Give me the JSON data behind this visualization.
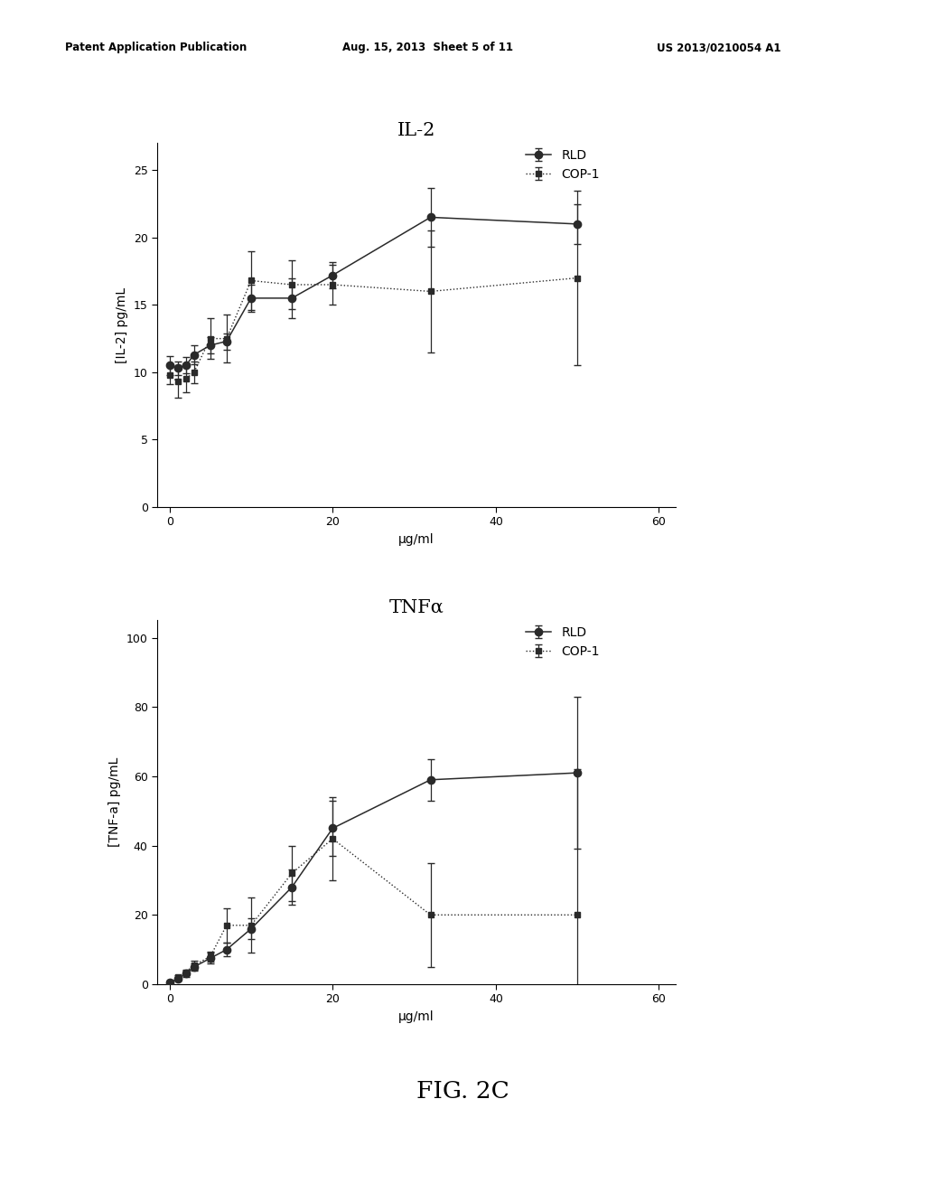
{
  "top_chart": {
    "title": "IL-2",
    "xlabel": "μg/ml",
    "ylabel": "[IL-2] pg/mL",
    "xlim": [
      -1.5,
      62
    ],
    "ylim": [
      0,
      27
    ],
    "yticks": [
      0,
      5,
      10,
      15,
      20,
      25
    ],
    "xticks": [
      0,
      20,
      40,
      60
    ],
    "rld_x": [
      0,
      1,
      2,
      3,
      5,
      7,
      10,
      15,
      20,
      32,
      50
    ],
    "rld_y": [
      10.5,
      10.3,
      10.5,
      11.3,
      12.0,
      12.3,
      15.5,
      15.5,
      17.2,
      21.5,
      21.0
    ],
    "rld_yerr": [
      0.7,
      0.5,
      0.6,
      0.7,
      0.6,
      0.6,
      1.0,
      1.5,
      1.0,
      2.2,
      1.5
    ],
    "cop1_x": [
      0,
      1,
      2,
      3,
      5,
      7,
      10,
      15,
      20,
      32,
      50
    ],
    "cop1_y": [
      9.8,
      9.3,
      9.5,
      10.0,
      12.5,
      12.5,
      16.8,
      16.5,
      16.5,
      16.0,
      17.0
    ],
    "cop1_yerr": [
      0.7,
      1.2,
      1.0,
      0.8,
      1.5,
      1.8,
      2.2,
      1.8,
      1.5,
      4.5,
      6.5
    ]
  },
  "bottom_chart": {
    "title": "TNFα",
    "xlabel": "μg/ml",
    "ylabel": "[TNF-a] pg/mL",
    "xlim": [
      -1.5,
      62
    ],
    "ylim": [
      0,
      105
    ],
    "yticks": [
      0,
      20,
      40,
      60,
      80,
      100
    ],
    "xticks": [
      0,
      20,
      40,
      60
    ],
    "rld_x": [
      0,
      1,
      2,
      3,
      5,
      7,
      10,
      15,
      20,
      32,
      50
    ],
    "rld_y": [
      0.5,
      1.5,
      3.0,
      5.0,
      7.5,
      10.0,
      16.0,
      28.0,
      45.0,
      59.0,
      61.0
    ],
    "rld_yerr": [
      0.3,
      0.5,
      0.8,
      1.0,
      1.5,
      2.0,
      3.0,
      5.0,
      8.0,
      6.0,
      22.0
    ],
    "cop1_x": [
      0,
      1,
      2,
      3,
      5,
      7,
      10,
      15,
      20,
      32,
      50
    ],
    "cop1_y": [
      0.5,
      2.0,
      3.5,
      5.5,
      8.0,
      17.0,
      17.0,
      32.0,
      42.0,
      20.0,
      20.0
    ],
    "cop1_yerr": [
      0.3,
      0.5,
      0.8,
      1.2,
      1.5,
      5.0,
      8.0,
      8.0,
      12.0,
      15.0,
      42.0
    ]
  },
  "fig_label": "FIG. 2C",
  "header_left": "Patent Application Publication",
  "header_mid": "Aug. 15, 2013  Sheet 5 of 11",
  "header_right": "US 2013/0210054 A1",
  "line_color": "#2a2a2a",
  "marker_size": 6,
  "cap_size": 3,
  "elinewidth": 0.9,
  "legend_rld": "RLD",
  "legend_cop1": "COP-1"
}
